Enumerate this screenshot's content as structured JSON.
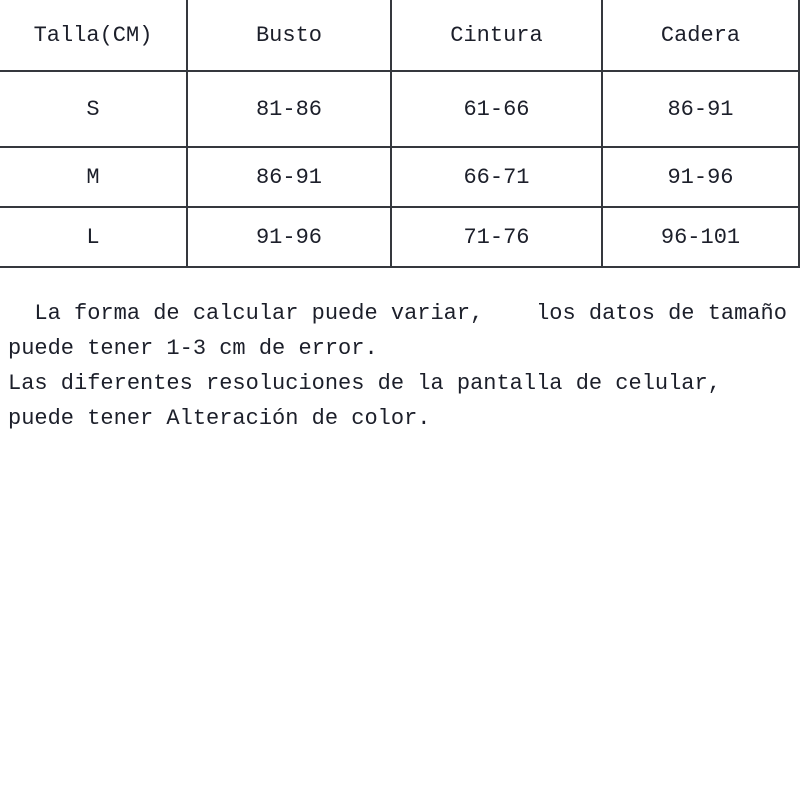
{
  "table": {
    "columns": [
      "Talla(CM)",
      "Busto",
      "Cintura",
      "Cadera"
    ],
    "rows": [
      [
        "S",
        "81-86",
        "61-66",
        "86-91"
      ],
      [
        "M",
        "86-91",
        "66-71",
        "91-96"
      ],
      [
        "L",
        "91-96",
        "71-76",
        "96-101"
      ]
    ]
  },
  "notes": {
    "lines": [
      "  La forma de calcular puede variar,    los datos de tamaño",
      "puede tener 1-3 cm de error.",
      "Las diferentes resoluciones de la pantalla de celular,",
      "puede tener Alteración de color."
    ]
  },
  "colors": {
    "text": "#1c1f2a",
    "border": "#35383d",
    "background": "#ffffff"
  }
}
